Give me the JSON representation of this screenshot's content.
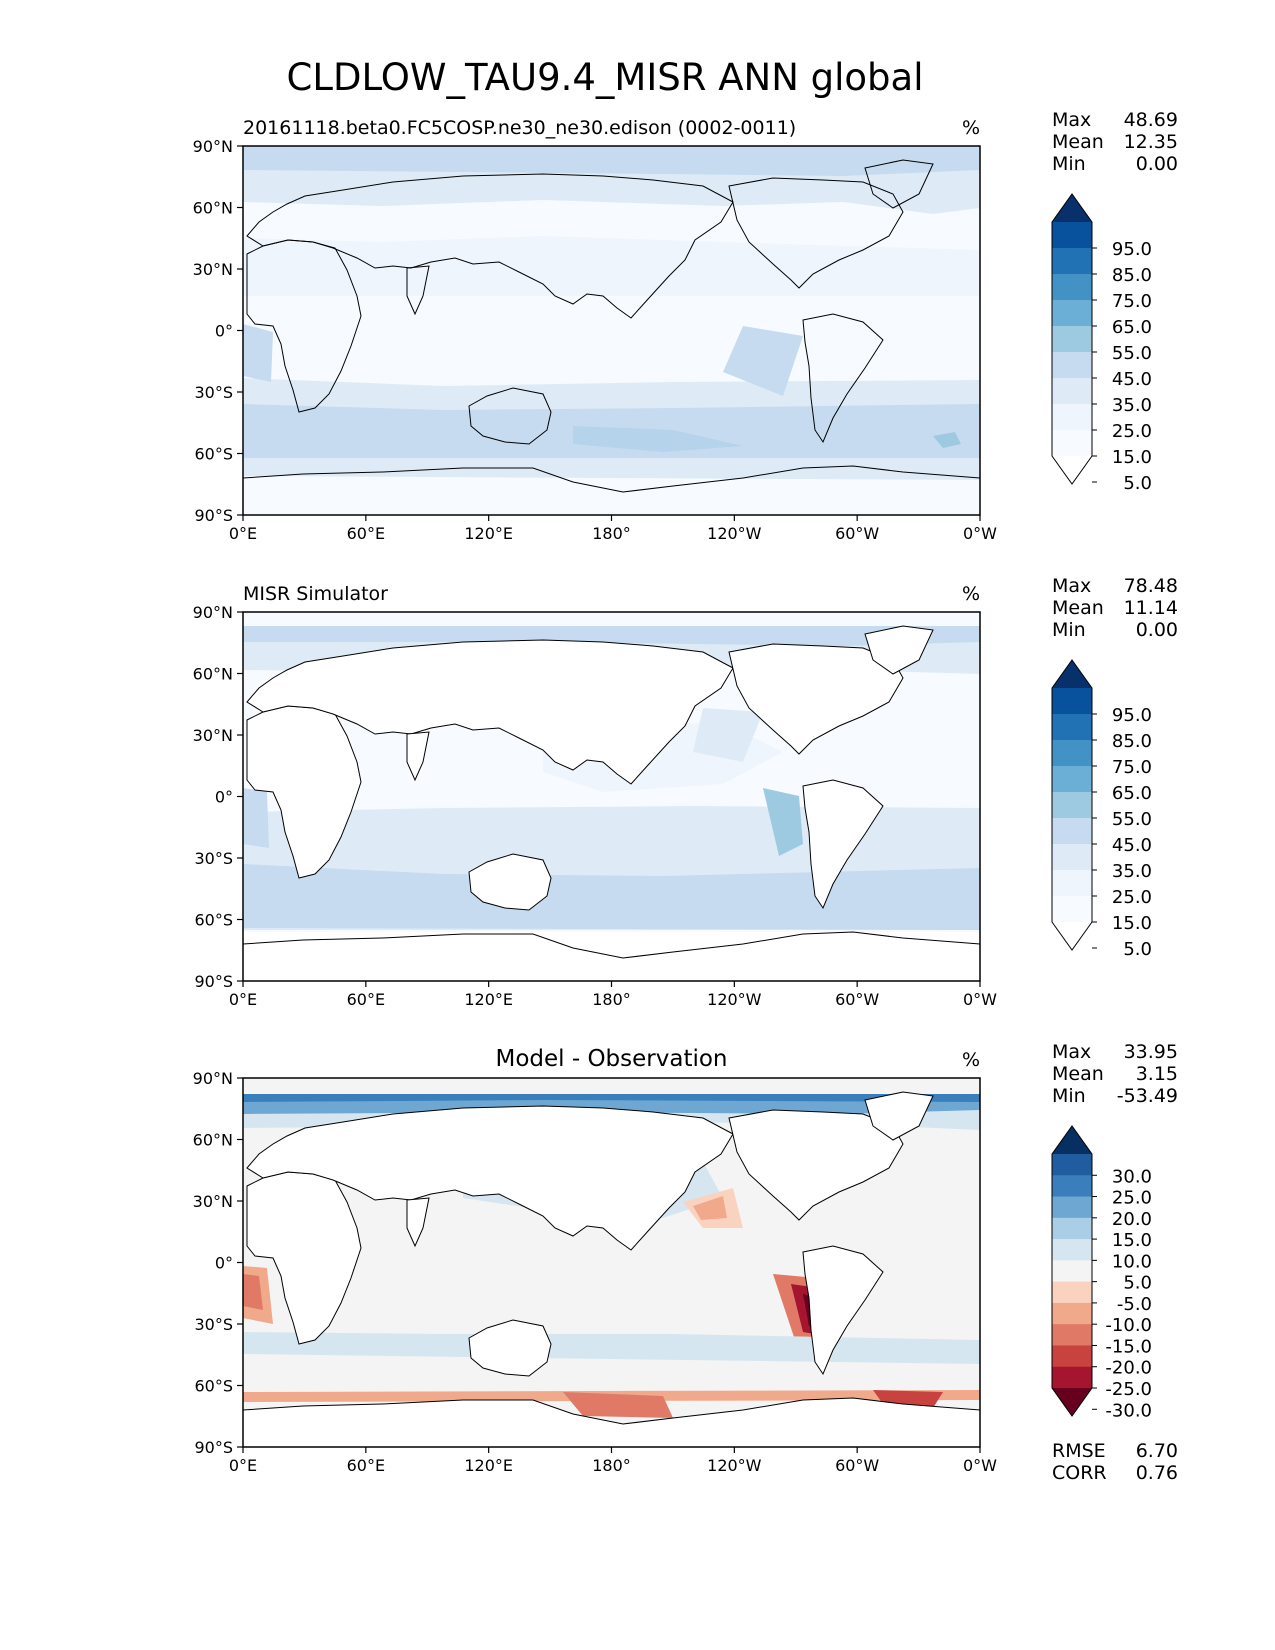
{
  "title": "CLDLOW_TAU9.4_MISR ANN global",
  "x_ticks": [
    "0°E",
    "60°E",
    "120°E",
    "180°",
    "120°W",
    "60°W",
    "0°W"
  ],
  "y_ticks": [
    "90°N",
    "60°N",
    "30°N",
    "0°",
    "30°S",
    "60°S",
    "90°S"
  ],
  "panels": [
    {
      "left_title": "20161118.beta0.FC5COSP.ne30_ne30.edison (0002-0011)",
      "center_title": "",
      "units": "%",
      "stats": [
        {
          "label": "Max",
          "value": "48.69"
        },
        {
          "label": "Mean",
          "value": "12.35"
        },
        {
          "label": "Min",
          "value": "0.00"
        }
      ],
      "colorbar": {
        "labels": [
          "95.0",
          "85.0",
          "75.0",
          "65.0",
          "55.0",
          "45.0",
          "35.0",
          "25.0",
          "15.0",
          "5.0"
        ],
        "colors": [
          "#08306b",
          "#08519c",
          "#2171b5",
          "#4292c6",
          "#6baed6",
          "#9ecae1",
          "#c6dbef",
          "#deebf7",
          "#eef5fc",
          "#f7fbff",
          "#ffffff"
        ]
      },
      "footer": []
    },
    {
      "left_title": "MISR Simulator",
      "center_title": "",
      "units": "%",
      "stats": [
        {
          "label": "Max",
          "value": "78.48"
        },
        {
          "label": "Mean",
          "value": "11.14"
        },
        {
          "label": "Min",
          "value": "0.00"
        }
      ],
      "colorbar": {
        "labels": [
          "95.0",
          "85.0",
          "75.0",
          "65.0",
          "55.0",
          "45.0",
          "35.0",
          "25.0",
          "15.0",
          "5.0"
        ],
        "colors": [
          "#08306b",
          "#08519c",
          "#2171b5",
          "#4292c6",
          "#6baed6",
          "#9ecae1",
          "#c6dbef",
          "#deebf7",
          "#eef5fc",
          "#f7fbff",
          "#ffffff"
        ]
      },
      "footer": []
    },
    {
      "left_title": "",
      "center_title": "Model - Observation",
      "units": "%",
      "stats": [
        {
          "label": "Max",
          "value": "33.95"
        },
        {
          "label": "Mean",
          "value": "3.15"
        },
        {
          "label": "Min",
          "value": "-53.49"
        }
      ],
      "colorbar": {
        "labels": [
          "30.0",
          "25.0",
          "20.0",
          "15.0",
          "10.0",
          "5.0",
          "-5.0",
          "-10.0",
          "-15.0",
          "-20.0",
          "-25.0",
          "-30.0"
        ],
        "colors": [
          "#053061",
          "#1f5d9e",
          "#3a7fbc",
          "#6ea8d2",
          "#aacee5",
          "#d6e6f1",
          "#f4f4f4",
          "#f9d3bf",
          "#f1a98c",
          "#e07a66",
          "#c8433f",
          "#a51530",
          "#67001f"
        ]
      },
      "footer": [
        {
          "label": "RMSE",
          "value": "6.70"
        },
        {
          "label": "CORR",
          "value": "0.76"
        }
      ]
    }
  ]
}
